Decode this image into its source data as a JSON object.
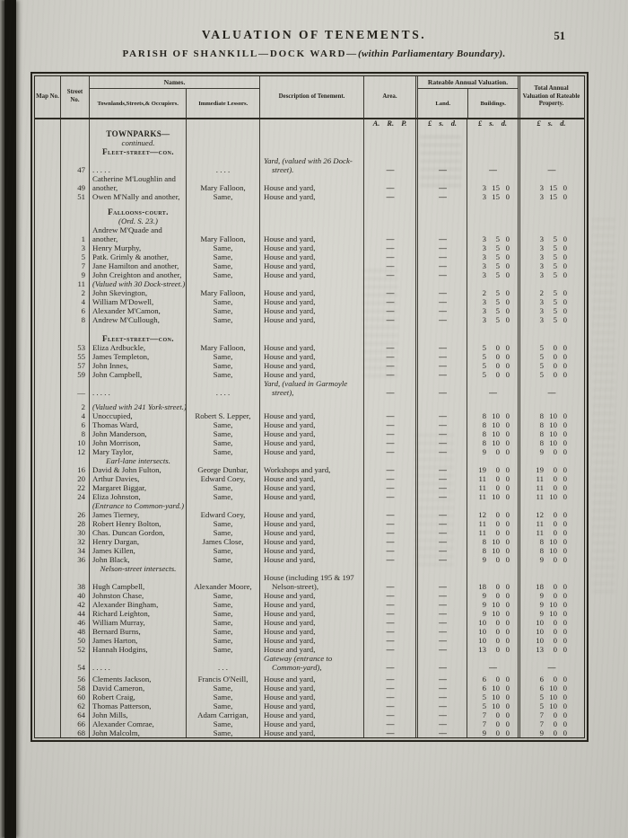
{
  "page": {
    "header_title": "VALUATION OF TENEMENTS.",
    "page_number": "51",
    "parish_bold": "PARISH OF SHANKILL—DOCK WARD—",
    "parish_italic": "(within Parliamentary Boundary)."
  },
  "table": {
    "columns": {
      "map_no": "Map No.",
      "street_no": "Street No.",
      "names": "Names.",
      "occupiers": "Townlands,Streets,& Occupiers.",
      "lessors": "Immediate Lessors.",
      "description": "Description of Tenement.",
      "area": "Area.",
      "rateable": "Rateable Annual Valuation.",
      "land": "Land.",
      "buildings": "Buildings.",
      "total": "Total Annual Valuation of Rateable Property."
    },
    "units": {
      "area": "A. R. P.",
      "money": "£ s. d."
    },
    "rows": [
      {
        "t": "units"
      },
      {
        "t": "sec",
        "lines": [
          [
            "b",
            "TOWNPARKS—"
          ],
          [
            "i",
            "continued."
          ],
          [
            "sc",
            "Fleet-street—con."
          ]
        ]
      },
      {
        "t": "r",
        "no": "47",
        "occ": ".   .   .   .   .",
        "les": ".   .   .   .",
        "desc": "Yard, (valued with 26 Dock-street).",
        "di": 1,
        "area": "—",
        "land": "—",
        "bld": "—",
        "tot": "—"
      },
      {
        "t": "r",
        "no": "49",
        "occ": "Catherine M'Loughlin and another,",
        "les": "Mary Falloon,",
        "desc": "House and yard,",
        "area": "—",
        "land": "—",
        "bld": "3 15 0",
        "tot": "3 15 0"
      },
      {
        "t": "r",
        "no": "51",
        "occ": "Owen M'Nally and another,",
        "les": "Same,",
        "desc": "House and yard,",
        "area": "—",
        "land": "—",
        "bld": "3 15 0",
        "tot": "3 15 0"
      },
      {
        "t": "gap",
        "h": 7
      },
      {
        "t": "sec",
        "lines": [
          [
            "sc",
            "Falloons-court."
          ],
          [
            "i",
            "(Ord. S. 23.)"
          ]
        ]
      },
      {
        "t": "r",
        "no": "1",
        "occ": "Andrew M'Quade and another,",
        "les": "Mary Falloon,",
        "desc": "House and yard,",
        "area": "—",
        "land": "—",
        "bld": "3 5 0",
        "tot": "3 5 0"
      },
      {
        "t": "r",
        "no": "3",
        "occ": "Henry Murphy,",
        "les": "Same,",
        "desc": "House and yard,",
        "area": "—",
        "land": "—",
        "bld": "3 5 0",
        "tot": "3 5 0"
      },
      {
        "t": "r",
        "no": "5",
        "occ": "Patk. Grimly & another,",
        "les": "Same,",
        "desc": "House and yard,",
        "area": "—",
        "land": "—",
        "bld": "3 5 0",
        "tot": "3 5 0"
      },
      {
        "t": "r",
        "no": "7",
        "occ": "Jane Hamilton and another,",
        "les": "Same,",
        "desc": "House and yard,",
        "area": "—",
        "land": "—",
        "bld": "3 5 0",
        "tot": "3 5 0"
      },
      {
        "t": "r",
        "no": "9",
        "occ": "John Creighton and another,",
        "les": "Same,",
        "desc": "House and yard,",
        "area": "—",
        "land": "—",
        "bld": "3 5 0",
        "tot": "3 5 0"
      },
      {
        "t": "note",
        "no": "11",
        "text": "(Valued with 30 Dock-street.)"
      },
      {
        "t": "r",
        "no": "2",
        "occ": "John Skevington,",
        "les": "Mary Falloon,",
        "desc": "House and yard,",
        "area": "—",
        "land": "—",
        "bld": "2 5 0",
        "tot": "2 5 0"
      },
      {
        "t": "r",
        "no": "4",
        "occ": "William M'Dowell,",
        "les": "Same,",
        "desc": "House and yard,",
        "area": "—",
        "land": "—",
        "bld": "3 5 0",
        "tot": "3 5 0"
      },
      {
        "t": "r",
        "no": "6",
        "occ": "Alexander M'Camon,",
        "les": "Same,",
        "desc": "House and yard,",
        "area": "—",
        "land": "—",
        "bld": "3 5 0",
        "tot": "3 5 0"
      },
      {
        "t": "r",
        "no": "8",
        "occ": "Andrew M'Cullough,",
        "les": "Same,",
        "desc": "House and yard,",
        "area": "—",
        "land": "—",
        "bld": "3 5 0",
        "tot": "3 5 0"
      },
      {
        "t": "gap",
        "h": 11
      },
      {
        "t": "sec",
        "lines": [
          [
            "sc",
            "Fleet-street—con."
          ]
        ]
      },
      {
        "t": "r",
        "no": "53",
        "occ": "Eliza Ardbuckle,",
        "les": "Mary Falloon,",
        "desc": "House and yard,",
        "area": "—",
        "land": "—",
        "bld": "5 0 0",
        "tot": "5 0 0"
      },
      {
        "t": "r",
        "no": "55",
        "occ": "James Templeton,",
        "les": "Same,",
        "desc": "House and yard,",
        "area": "—",
        "land": "—",
        "bld": "5 0 0",
        "tot": "5 0 0"
      },
      {
        "t": "r",
        "no": "57",
        "occ": "John Innes,",
        "les": "Same,",
        "desc": "House and yard,",
        "area": "—",
        "land": "—",
        "bld": "5 0 0",
        "tot": "5 0 0"
      },
      {
        "t": "r",
        "no": "59",
        "occ": "John Campbell,",
        "les": "Same,",
        "desc": "House and yard,",
        "area": "—",
        "land": "—",
        "bld": "5 0 0",
        "tot": "5 0 0"
      },
      {
        "t": "r",
        "no": "—",
        "occ": ".   .   .   .   .",
        "les": ".   .   .   .",
        "desc": "Yard, (valued in Garmoyle street),",
        "di": 1,
        "area": "—",
        "land": "—",
        "bld": "—",
        "tot": "—"
      },
      {
        "t": "gap",
        "h": 6
      },
      {
        "t": "note",
        "no": "2",
        "text": "(Valued with 241 York-street.)"
      },
      {
        "t": "r",
        "no": "4",
        "occ": "Unoccupied,",
        "les": "Robert S. Lepper,",
        "desc": "House and yard,",
        "area": "—",
        "land": "—",
        "bld": "8 10 0",
        "tot": "8 10 0"
      },
      {
        "t": "r",
        "no": "6",
        "occ": "Thomas Ward,",
        "les": "Same,",
        "desc": "House and yard,",
        "area": "—",
        "land": "—",
        "bld": "8 10 0",
        "tot": "8 10 0"
      },
      {
        "t": "r",
        "no": "8",
        "occ": "John Manderson,",
        "les": "Same,",
        "desc": "House and yard,",
        "area": "—",
        "land": "—",
        "bld": "8 10 0",
        "tot": "8 10 0"
      },
      {
        "t": "r",
        "no": "10",
        "occ": "John Morrison,",
        "les": "Same,",
        "desc": "House and yard,",
        "area": "—",
        "land": "—",
        "bld": "8 10 0",
        "tot": "8 10 0"
      },
      {
        "t": "r",
        "no": "12",
        "occ": "Mary Taylor,",
        "les": "Same,",
        "desc": "House and yard,",
        "area": "—",
        "land": "—",
        "bld": "9 0 0",
        "tot": "9 0 0"
      },
      {
        "t": "int",
        "text": "Earl-lane intersects."
      },
      {
        "t": "r",
        "no": "16",
        "occ": "David & John Fulton,",
        "les": "George Dunbar,",
        "desc": "Workshops and yard,",
        "area": "—",
        "land": "—",
        "bld": "19 0 0",
        "tot": "19 0 0"
      },
      {
        "t": "r",
        "no": "20",
        "occ": "Arthur Davies,",
        "les": "Edward Coey,",
        "desc": "House and yard,",
        "area": "—",
        "land": "—",
        "bld": "11 0 0",
        "tot": "11 0 0"
      },
      {
        "t": "r",
        "no": "22",
        "occ": "Margaret Biggar,",
        "les": "Same,",
        "desc": "House and yard,",
        "area": "—",
        "land": "—",
        "bld": "11 0 0",
        "tot": "11 0 0"
      },
      {
        "t": "r",
        "no": "24",
        "occ": "Eliza Johnston,",
        "les": "Same,",
        "desc": "House and yard,",
        "area": "—",
        "land": "—",
        "bld": "11 10 0",
        "tot": "11 10 0"
      },
      {
        "t": "note",
        "no": "",
        "text": "(Entrance to Common-yard.)"
      },
      {
        "t": "r",
        "no": "26",
        "occ": "James Tierney,",
        "les": "Edward Coey,",
        "desc": "House and yard,",
        "area": "—",
        "land": "—",
        "bld": "12 0 0",
        "tot": "12 0 0"
      },
      {
        "t": "r",
        "no": "28",
        "occ": "Robert Henry Bolton,",
        "les": "Same,",
        "desc": "House and yard,",
        "area": "—",
        "land": "—",
        "bld": "11 0 0",
        "tot": "11 0 0"
      },
      {
        "t": "r",
        "no": "30",
        "occ": "Chas. Duncan Gordon,",
        "les": "Same,",
        "desc": "House and yard,",
        "area": "—",
        "land": "—",
        "bld": "11 0 0",
        "tot": "11 0 0"
      },
      {
        "t": "r",
        "no": "32",
        "occ": "Henry Dargan,",
        "les": "James Close,",
        "desc": "House and yard,",
        "area": "—",
        "land": "—",
        "bld": "8 10 0",
        "tot": "8 10 0"
      },
      {
        "t": "r",
        "no": "34",
        "occ": "James Killen,",
        "les": "Same,",
        "desc": "House and yard,",
        "area": "—",
        "land": "—",
        "bld": "8 10 0",
        "tot": "8 10 0"
      },
      {
        "t": "r",
        "no": "36",
        "occ": "John Black,",
        "les": "Same,",
        "desc": "House and yard,",
        "area": "—",
        "land": "—",
        "bld": "9 0 0",
        "tot": "9 0 0"
      },
      {
        "t": "int",
        "text": "Nelson-street intersects."
      },
      {
        "t": "r",
        "no": "38",
        "occ": "Hugh Campbell,",
        "les": "Alexander Moore,",
        "desc": "House (including 195 & 197 Nelson-street),",
        "area": "—",
        "land": "—",
        "bld": "18 0 0",
        "tot": "18 0 0"
      },
      {
        "t": "r",
        "no": "40",
        "occ": "Johnston Chase,",
        "les": "Same,",
        "desc": "House and yard,",
        "area": "—",
        "land": "—",
        "bld": "9 0 0",
        "tot": "9 0 0"
      },
      {
        "t": "r",
        "no": "42",
        "occ": "Alexander Bingham,",
        "les": "Same,",
        "desc": "House and yard,",
        "area": "—",
        "land": "—",
        "bld": "9 10 0",
        "tot": "9 10 0"
      },
      {
        "t": "r",
        "no": "44",
        "occ": "Richard Leighton,",
        "les": "Same,",
        "desc": "House and yard,",
        "area": "—",
        "land": "—",
        "bld": "9 10 0",
        "tot": "9 10 0"
      },
      {
        "t": "r",
        "no": "46",
        "occ": "William Murray,",
        "les": "Same,",
        "desc": "House and yard,",
        "area": "—",
        "land": "—",
        "bld": "10 0 0",
        "tot": "10 0 0"
      },
      {
        "t": "r",
        "no": "48",
        "occ": "Bernard Burns,",
        "les": "Same,",
        "desc": "House and yard,",
        "area": "—",
        "land": "—",
        "bld": "10 0 0",
        "tot": "10 0 0"
      },
      {
        "t": "r",
        "no": "50",
        "occ": "James Harton,",
        "les": "Same,",
        "desc": "House and yard,",
        "area": "—",
        "land": "—",
        "bld": "10 0 0",
        "tot": "10 0 0"
      },
      {
        "t": "r",
        "no": "52",
        "occ": "Hannah Hodgins,",
        "les": "Same,",
        "desc": "House and yard,",
        "area": "—",
        "land": "—",
        "bld": "13 0 0",
        "tot": "13 0 0"
      },
      {
        "t": "r",
        "no": "54",
        "occ": ".   .   .   .   .",
        "les": ".   .   .",
        "desc": "Gateway (entrance to Common-yard),",
        "di": 1,
        "area": "—",
        "land": "—",
        "bld": "—",
        "tot": "—"
      },
      {
        "t": "gap",
        "h": 3
      },
      {
        "t": "r",
        "no": "56",
        "occ": "Clements Jackson,",
        "les": "Francis O'Neill,",
        "desc": "House and yard,",
        "area": "—",
        "land": "—",
        "bld": "6 0 0",
        "tot": "6 0 0"
      },
      {
        "t": "r",
        "no": "58",
        "occ": "David Cameron,",
        "les": "Same,",
        "desc": "House and yard,",
        "area": "—",
        "land": "—",
        "bld": "6 10 0",
        "tot": "6 10 0"
      },
      {
        "t": "r",
        "no": "60",
        "occ": "Robert Craig,",
        "les": "Same,",
        "desc": "House and yard,",
        "area": "—",
        "land": "—",
        "bld": "5 10 0",
        "tot": "5 10 0"
      },
      {
        "t": "r",
        "no": "62",
        "occ": "Thomas Patterson,",
        "les": "Same,",
        "desc": "House and yard,",
        "area": "—",
        "land": "—",
        "bld": "5 10 0",
        "tot": "5 10 0"
      },
      {
        "t": "r",
        "no": "64",
        "occ": "John Mills,",
        "les": "Adam Carrigan,",
        "desc": "House and yard,",
        "area": "—",
        "land": "—",
        "bld": "7 0 0",
        "tot": "7 0 0"
      },
      {
        "t": "r",
        "no": "66",
        "occ": "Alexander Comrae,",
        "les": "Same,",
        "desc": "House and yard,",
        "area": "—",
        "land": "—",
        "bld": "7 0 0",
        "tot": "7 0 0"
      },
      {
        "t": "r",
        "no": "68",
        "occ": "John Malcolm,",
        "les": "Same,",
        "desc": "House and yard,",
        "area": "—",
        "land": "—",
        "bld": "9 0 0",
        "tot": "9 0 0"
      }
    ]
  }
}
